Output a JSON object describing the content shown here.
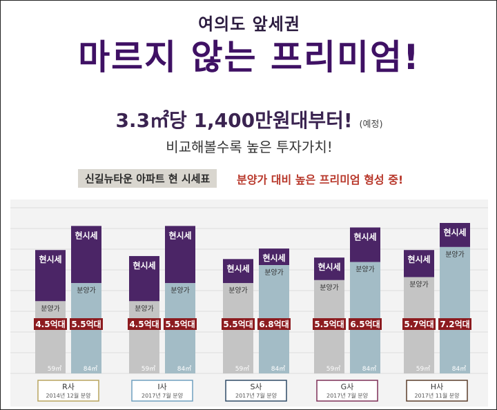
{
  "header": {
    "kicker": "여의도 앞세권",
    "headline": "마르지 않는 프리미엄!",
    "price_main": "3.3㎡당 1,400만원대부터!",
    "price_note": "(예정)",
    "tagline": "비교해볼수록 높은 투자가치!",
    "badge": "신길뉴타운 아파트 현 시세표",
    "premium_note": "분양가 대비 높은 프리미엄 형성 중!"
  },
  "colors": {
    "market": "#4b2566",
    "small_sale": "#c4c4c4",
    "large_sale": "#a3bcc6",
    "label_bg": "#8c1b1f",
    "group_borders": [
      "#b8a45e",
      "#6f9fbf",
      "#2e4a66",
      "#7d2e57",
      "#5a3d2b"
    ]
  },
  "chart_data": {
    "type": "bar",
    "groups": [
      {
        "name": "R사",
        "date": "2014년 12월 분양"
      },
      {
        "name": "I사",
        "date": "2017년 7월 분양"
      },
      {
        "name": "S사",
        "date": "2017년 7월 분양"
      },
      {
        "name": "G사",
        "date": "2017년 7월 분양"
      },
      {
        "name": "H사",
        "date": "2017년 11월 분양"
      }
    ],
    "sizes": [
      "59㎡",
      "84㎡"
    ],
    "segment_labels": {
      "market": "현시세",
      "sale": "분양가"
    },
    "bars": [
      {
        "group": "R사",
        "size": "59㎡",
        "sale_label": "4.5억대",
        "sale_level": 0.48,
        "market_level": 0.82
      },
      {
        "group": "R사",
        "size": "84㎡",
        "sale_label": "5.5억대",
        "sale_level": 0.6,
        "market_level": 0.98
      },
      {
        "group": "I사",
        "size": "59㎡",
        "sale_label": "4.5억대",
        "sale_level": 0.48,
        "market_level": 0.78
      },
      {
        "group": "I사",
        "size": "84㎡",
        "sale_label": "5.5억대",
        "sale_level": 0.6,
        "market_level": 0.98
      },
      {
        "group": "S사",
        "size": "59㎡",
        "sale_label": "5.5억대",
        "sale_level": 0.6,
        "market_level": 0.76
      },
      {
        "group": "S사",
        "size": "84㎡",
        "sale_label": "6.8억대",
        "sale_level": 0.72,
        "market_level": 0.83
      },
      {
        "group": "G사",
        "size": "59㎡",
        "sale_label": "5.5억대",
        "sale_level": 0.62,
        "market_level": 0.77
      },
      {
        "group": "G사",
        "size": "84㎡",
        "sale_label": "6.5억대",
        "sale_level": 0.74,
        "market_level": 0.97
      },
      {
        "group": "H사",
        "size": "59㎡",
        "sale_label": "5.7억대",
        "sale_level": 0.64,
        "market_level": 0.82
      },
      {
        "group": "H사",
        "size": "84㎡",
        "sale_label": "7.2억대",
        "sale_level": 0.84,
        "market_level": 1.0
      }
    ]
  }
}
